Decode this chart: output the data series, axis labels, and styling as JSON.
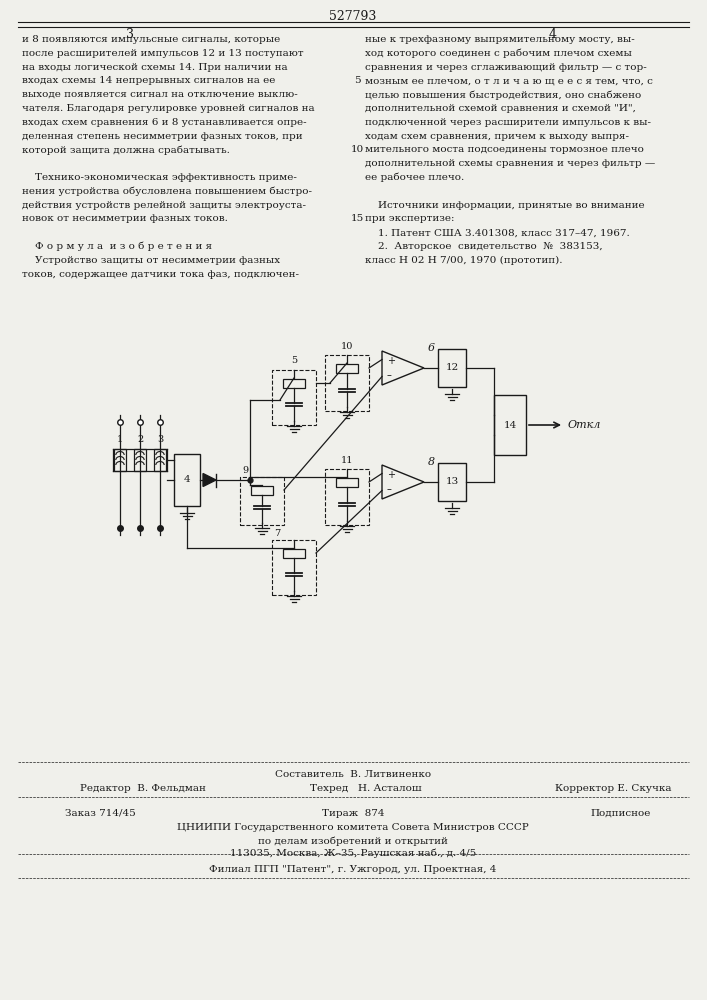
{
  "patent_number": "527793",
  "page_col_left": "3",
  "page_col_right": "4",
  "bg_color": "#f0f0eb",
  "text_color": "#1a1a1a",
  "col1_text": [
    "и 8 появляются импульсные сигналы, которые",
    "после расширителей импульсов 12 и 13 поступают",
    "на входы логической схемы 14. При наличии на",
    "входах схемы 14 непрерывных сигналов на ее",
    "выходе появляется сигнал на отключение выклю-",
    "чателя. Благодаря регулировке уровней сигналов на",
    "входах схем сравнения 6 и 8 устанавливается опре-",
    "деленная степень несимметрии фазных токов, при",
    "которой защита должна срабатывать.",
    "",
    "    Технико-экономическая эффективность приме-",
    "нения устройства обусловлена повышением быстро-",
    "действия устройств релейной защиты электроуста-",
    "новок от несимметрии фазных токов.",
    "",
    "    Ф о р м у л а  и з о б р е т е н и я",
    "    Устройство защиты от несимметрии фазных",
    "токов, содержащее датчики тока фаз, подключен-"
  ],
  "col2_text": [
    "ные к трехфазному выпрямительному мосту, вы-",
    "ход которого соединен с рабочим плечом схемы",
    "сравнения и через сглаживающий фильтр — с тор-",
    "мозным ее плечом, о т л и ч а ю щ е е с я тем, что, с",
    "целью повышения быстродействия, оно снабжено",
    "дополнительной схемой сравнения и схемой \"И\",",
    "подключенной через расширители импульсов к вы-",
    "ходам схем сравнения, причем к выходу выпря-",
    "мительного моста подсоединены тормозное плечо",
    "дополнительной схемы сравнения и через фильтр —",
    "ее рабочее плечо.",
    "",
    "    Источники информации, принятые во внимание",
    "при экспертизе:",
    "    1. Патент США 3.401308, класс 317–47, 1967.",
    "    2.  Авторское  свидетельство  №  383153,",
    "класс Н 02 Н 7/00, 1970 (прототип)."
  ],
  "line_numbers_rows": [
    3,
    8,
    13
  ],
  "line_numbers_vals": [
    "5",
    "10",
    "15"
  ],
  "footer_composer": "Составитель  В. Литвиненко",
  "footer_editor": "Редактор  В. Фельдман",
  "footer_techred": "Техред   Н. Асталош",
  "footer_corrector": "Корректор Е. Скучка",
  "footer_order": "Заказ 714/45",
  "footer_print": "Тираж  874",
  "footer_subscription": "Подписное",
  "footer_org1": "ЦНИИПИ Государственного комитета Совета Министров СССР",
  "footer_org2": "по делам изобретений и открытий",
  "footer_address": "113035, Москва, Ж–35, Раушская наб., д. 4/5",
  "footer_branch": "Филиал ПГП \"Патент\", г. Ужгород, ул. Проектная, 4"
}
